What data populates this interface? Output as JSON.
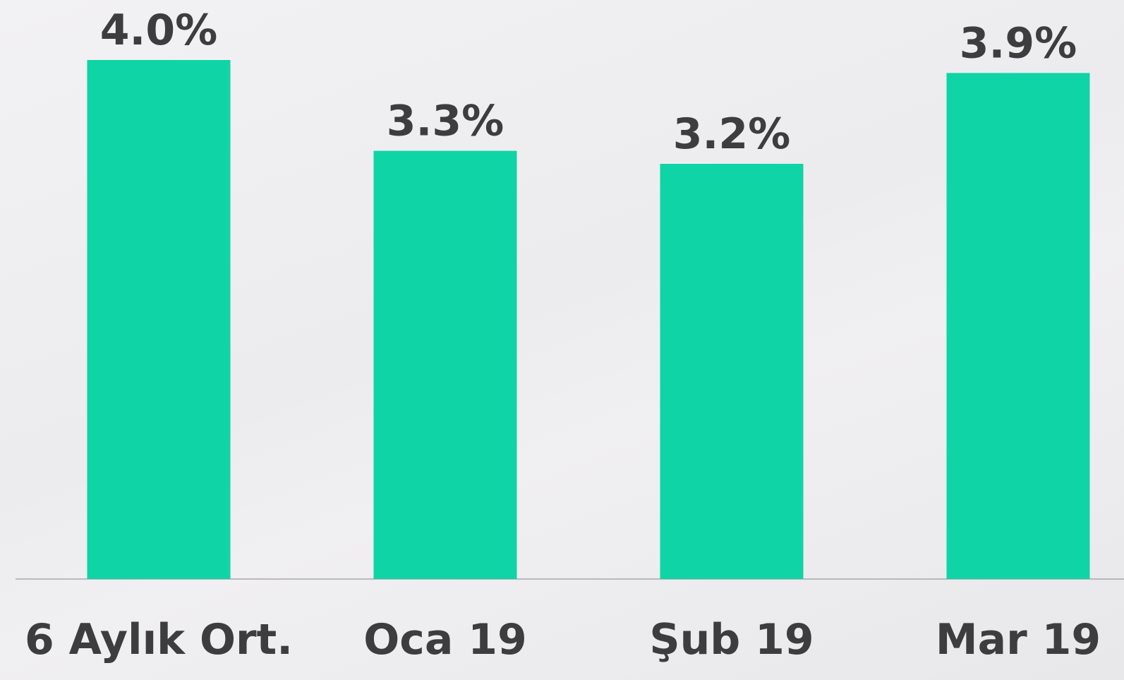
{
  "chart_data": {
    "type": "bar",
    "categories": [
      "6 Aylık Ort.",
      "Oca 19",
      "Şub 19",
      "Mar 19"
    ],
    "values": [
      4.0,
      3.3,
      3.2,
      3.9
    ],
    "value_labels": [
      "4.0%",
      "3.3%",
      "3.2%",
      "3.9%"
    ],
    "color": "#0fd4a6"
  }
}
